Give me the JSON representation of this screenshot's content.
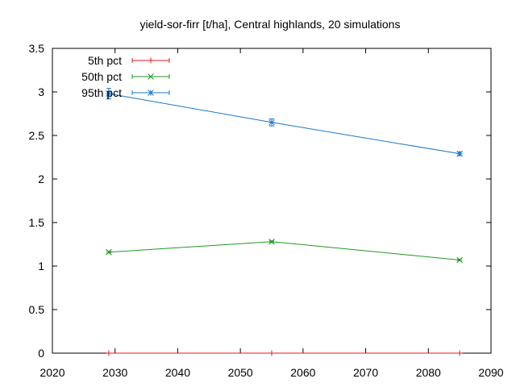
{
  "chart_data": {
    "type": "line",
    "title": "yield-sor-firr [t/ha], Central highlands, 20 simulations",
    "xlabel": "",
    "ylabel": "",
    "xlim": [
      2020,
      2090
    ],
    "ylim": [
      0,
      3.5
    ],
    "xticks": [
      2020,
      2030,
      2040,
      2050,
      2060,
      2070,
      2080,
      2090
    ],
    "yticks": [
      0,
      0.5,
      1,
      1.5,
      2,
      2.5,
      3,
      3.5
    ],
    "xtick_labels": [
      "2020",
      "2030",
      "2040",
      "2050",
      "2060",
      "2070",
      "2080",
      "2090"
    ],
    "ytick_labels": [
      "0",
      "0.5",
      "1",
      "1.5",
      "2",
      "2.5",
      "3",
      "3.5"
    ],
    "grid": false,
    "legend_position": "top-left",
    "x": [
      2029,
      2055,
      2085
    ],
    "series": [
      {
        "name": "5th pct",
        "color": "#e41a1c",
        "marker": "plus",
        "values": [
          0.0,
          0.0,
          0.0
        ],
        "err": [
          0.0,
          0.0,
          0.0
        ]
      },
      {
        "name": "50th pct",
        "color": "#229922",
        "marker": "cross",
        "values": [
          1.16,
          1.28,
          1.07
        ],
        "err": [
          0.01,
          0.01,
          0.01
        ]
      },
      {
        "name": "95th pct",
        "color": "#1a78c8",
        "marker": "star",
        "values": [
          2.98,
          2.65,
          2.29
        ],
        "err": [
          0.06,
          0.04,
          0.02
        ]
      }
    ]
  }
}
